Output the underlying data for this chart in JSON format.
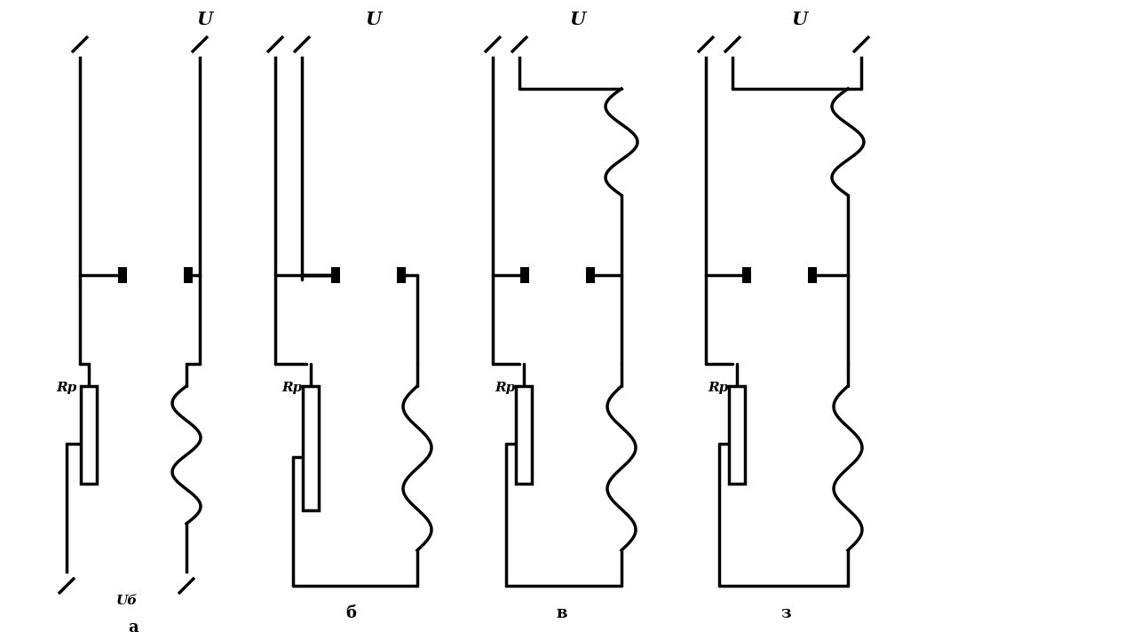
{
  "bg_color": "#ffffff",
  "line_color": "#000000",
  "lw": 2.5,
  "lw_thick": 3.0,
  "figsize": [
    12.84,
    7.2
  ],
  "dpi": 100,
  "xlim": [
    0,
    1284
  ],
  "ylim": [
    0,
    720
  ],
  "diagrams": [
    "a",
    "b",
    "v",
    "z"
  ],
  "labels_bottom": [
    "а",
    "б",
    "в",
    "з"
  ],
  "label_Ub": "Uб",
  "label_U": "U"
}
